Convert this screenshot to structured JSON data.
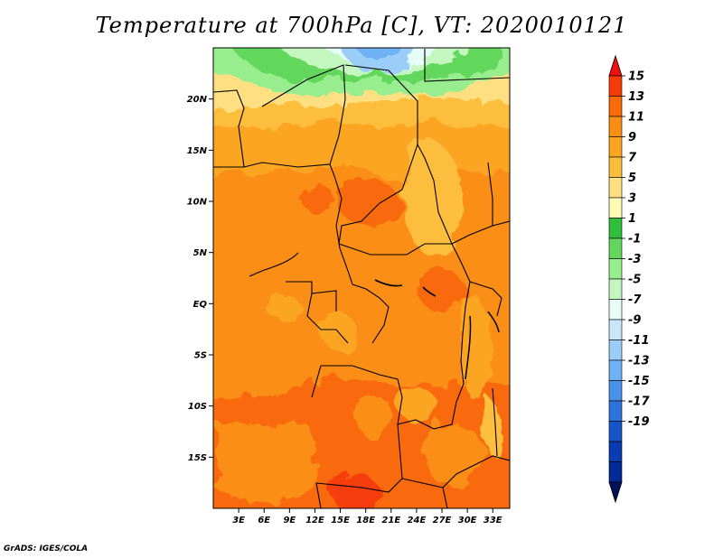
{
  "title": "Temperature at 700hPa [C], VT: 2020010121",
  "credit": "GrADS: IGES/COLA",
  "map": {
    "lon_range": [
      0,
      35
    ],
    "lat_range": [
      -20,
      25
    ],
    "x_ticks": [
      {
        "lon": 3,
        "label": "3E"
      },
      {
        "lon": 6,
        "label": "6E"
      },
      {
        "lon": 9,
        "label": "9E"
      },
      {
        "lon": 12,
        "label": "12E"
      },
      {
        "lon": 15,
        "label": "15E"
      },
      {
        "lon": 18,
        "label": "18E"
      },
      {
        "lon": 21,
        "label": "21E"
      },
      {
        "lon": 24,
        "label": "24E"
      },
      {
        "lon": 27,
        "label": "27E"
      },
      {
        "lon": 30,
        "label": "30E"
      },
      {
        "lon": 33,
        "label": "33E"
      }
    ],
    "y_ticks": [
      {
        "lat": 20,
        "label": "20N"
      },
      {
        "lat": 15,
        "label": "15N"
      },
      {
        "lat": 10,
        "label": "10N"
      },
      {
        "lat": 5,
        "label": "5N"
      },
      {
        "lat": 0,
        "label": "EQ"
      },
      {
        "lat": -5,
        "label": "5S"
      },
      {
        "lat": -10,
        "label": "10S"
      },
      {
        "lat": -15,
        "label": "15S"
      }
    ]
  },
  "colorbar": {
    "labels": [
      "15",
      "13",
      "11",
      "9",
      "7",
      "5",
      "3",
      "1",
      "-1",
      "-3",
      "-5",
      "-7",
      "-9",
      "-11",
      "-13",
      "-15",
      "-17",
      "-19"
    ],
    "colors": [
      "#f01010",
      "#f53c08",
      "#f86a0a",
      "#fa8e14",
      "#fba522",
      "#fdbd3c",
      "#fee082",
      "#fefbb4",
      "#2fbf3a",
      "#63d75c",
      "#98ee8e",
      "#c4f6c0",
      "#e6fcf6",
      "#c9e6fb",
      "#9bcdf9",
      "#6eb1f4",
      "#4992ec",
      "#2c74dc",
      "#1655c8",
      "#093bb2",
      "#022a96",
      "#04105c"
    ]
  }
}
